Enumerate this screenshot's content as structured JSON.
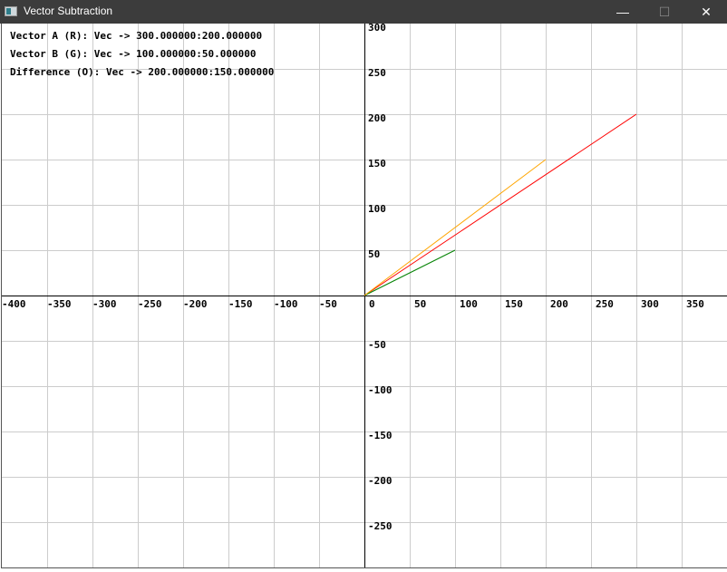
{
  "window": {
    "title": "Vector Subtraction",
    "minimize": "—",
    "maximize": "☐",
    "close": "✕"
  },
  "info": [
    "Vector A (R): Vec -> 300.000000:200.000000",
    "Vector B (G): Vec -> 100.000000:50.000000",
    "Difference (O): Vec -> 200.000000:150.000000"
  ],
  "chart_data": {
    "type": "line",
    "xlim": [
      -400,
      400
    ],
    "ylim": [
      -300,
      300
    ],
    "grid": true,
    "grid_step": 50,
    "x_ticks": [
      "-400",
      "-350",
      "-300",
      "-250",
      "-200",
      "-150",
      "-100",
      "-50",
      "0",
      "50",
      "100",
      "150",
      "200",
      "250",
      "300",
      "350"
    ],
    "y_ticks": [
      "300",
      "250",
      "200",
      "150",
      "100",
      "50",
      "-50",
      "-100",
      "-150",
      "-200",
      "-250"
    ],
    "series": [
      {
        "name": "Vector A (R)",
        "color": "#ff0000",
        "x": [
          0,
          300
        ],
        "y": [
          0,
          200
        ]
      },
      {
        "name": "Vector B (G)",
        "color": "#008000",
        "x": [
          0,
          100
        ],
        "y": [
          0,
          50
        ]
      },
      {
        "name": "Difference (O)",
        "color": "#ffa500",
        "x": [
          0,
          200
        ],
        "y": [
          0,
          150
        ]
      }
    ]
  }
}
